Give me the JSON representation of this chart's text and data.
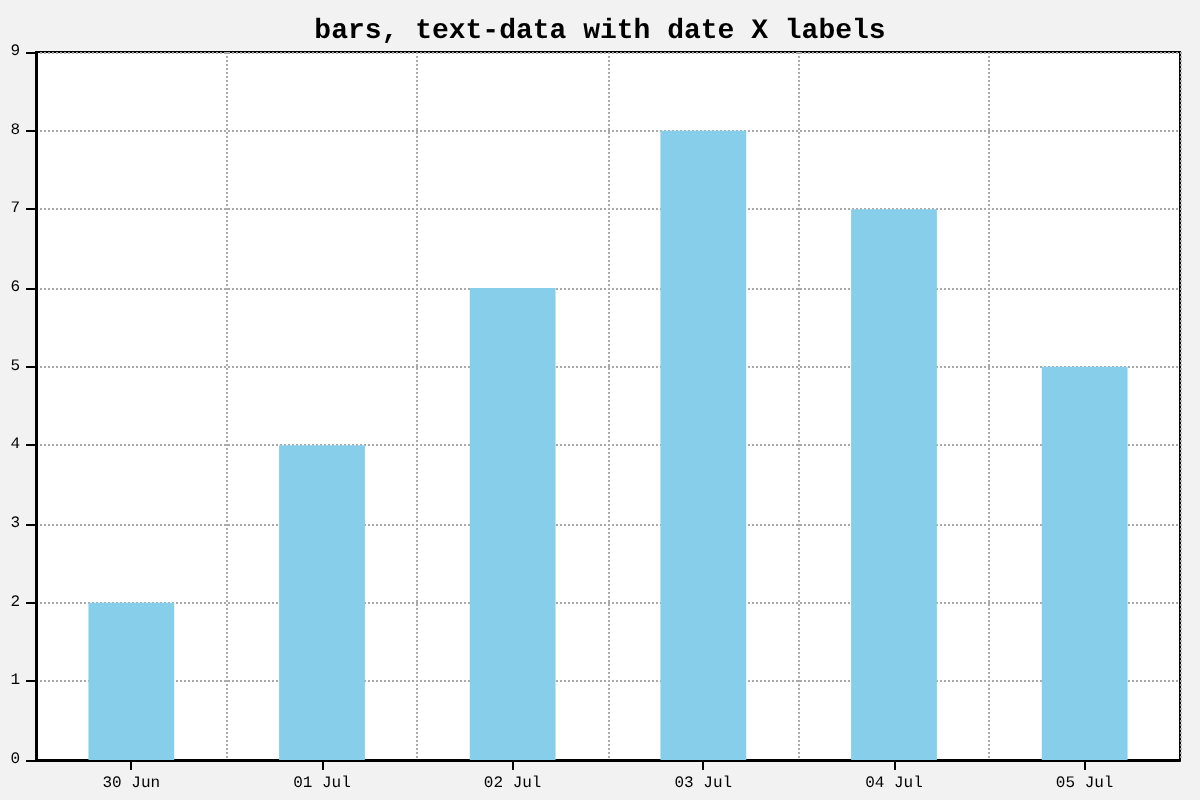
{
  "chart_data": {
    "type": "bar",
    "title": "bars, text-data with date X labels",
    "categories": [
      "30 Jun",
      "01 Jul",
      "02 Jul",
      "03 Jul",
      "04 Jul",
      "05 Jul"
    ],
    "values": [
      2,
      4,
      6,
      8,
      7,
      5
    ],
    "color": "#87ceeb",
    "ylim": [
      0,
      9
    ],
    "yticks": [
      0,
      1,
      2,
      3,
      4,
      5,
      6,
      7,
      8,
      9
    ],
    "grid": true
  }
}
